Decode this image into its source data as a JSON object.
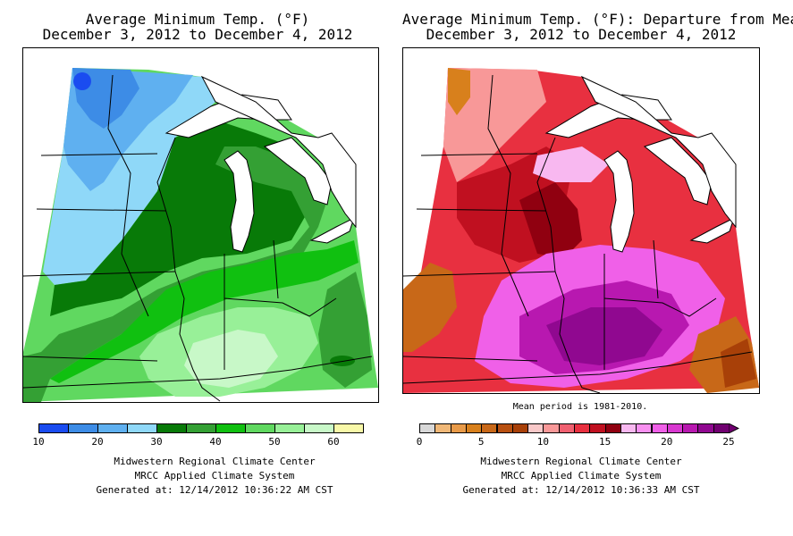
{
  "left_panel": {
    "title_line1": "Average Minimum Temp. (°F)",
    "title_line2": "December 3, 2012 to December 4, 2012",
    "colorbar": {
      "colors": [
        "#1a4cf0",
        "#3d8ce6",
        "#5fb0f0",
        "#8fd8f8",
        "#087a08",
        "#34a034",
        "#10c010",
        "#60d860",
        "#98f098",
        "#c8f8c8",
        "#f8f8a8"
      ],
      "ticks": [
        "10",
        "20",
        "30",
        "40",
        "50",
        "60"
      ],
      "tick_cells": [
        0,
        2,
        4,
        6,
        8,
        10
      ]
    },
    "credit_line1": "Midwestern Regional Climate Center",
    "credit_line2": "MRCC Applied Climate System",
    "credit_line3": "Generated at: 12/14/2012 10:36:22 AM CST"
  },
  "right_panel": {
    "title_line1": "Average Minimum Temp. (°F): Departure from Mean",
    "title_line2": "December 3, 2012 to December 4, 2012",
    "note": "Mean period is 1981-2010.",
    "colorbar": {
      "colors": [
        "#d8d8d8",
        "#f0b878",
        "#e89a48",
        "#d8801c",
        "#c86818",
        "#b85010",
        "#a84008",
        "#f8c8c8",
        "#f89898",
        "#f06070",
        "#e83040",
        "#c01020",
        "#900010",
        "#f8b8f0",
        "#f890f0",
        "#f060e8",
        "#d838d0",
        "#b818b0",
        "#900890",
        "#700070"
      ],
      "ticks": [
        "0",
        "5",
        "10",
        "15",
        "20",
        "25"
      ],
      "tick_cells": [
        0,
        4,
        8,
        12,
        16,
        20
      ]
    },
    "credit_line1": "Midwestern Regional Climate Center",
    "credit_line2": "MRCC Applied Climate System",
    "credit_line3": "Generated at: 12/14/2012 10:36:33 AM CST"
  }
}
